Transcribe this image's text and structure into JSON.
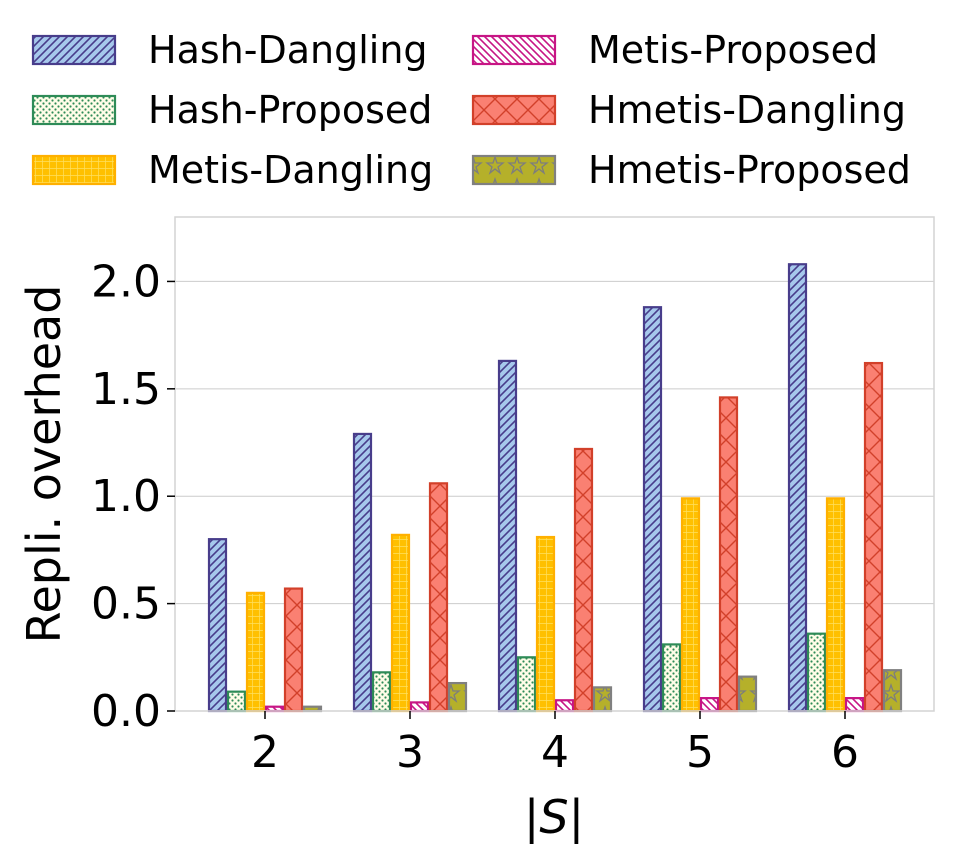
{
  "chart_data": {
    "type": "bar",
    "categories": [
      "2",
      "3",
      "4",
      "5",
      "6"
    ],
    "xlabel": "|S|",
    "ylabel": "Repli. overhead",
    "ylim": [
      0,
      2.3
    ],
    "yticks": [
      "0.0",
      "0.5",
      "1.0",
      "1.5",
      "2.0"
    ],
    "grid": "horizontal",
    "legend_position": "top",
    "series": [
      {
        "name": "Hash-Dangling",
        "values": [
          0.8,
          1.29,
          1.63,
          1.88,
          2.08
        ],
        "color": "#a6c8ec",
        "edge": "#483d8b",
        "hatch": "diagonal"
      },
      {
        "name": "Hash-Proposed",
        "values": [
          0.09,
          0.18,
          0.25,
          0.31,
          0.36
        ],
        "color": "#fffde8",
        "edge": "#2e8b57",
        "hatch": "dots"
      },
      {
        "name": "Metis-Dangling",
        "values": [
          0.55,
          0.82,
          0.81,
          0.99,
          0.99
        ],
        "color": "#ffc000",
        "edge": "#ffb000",
        "hatch": "grid"
      },
      {
        "name": "Metis-Proposed",
        "values": [
          0.02,
          0.04,
          0.05,
          0.06,
          0.06
        ],
        "color": "#ffffff",
        "edge": "#c71585",
        "hatch": "backdiagonal"
      },
      {
        "name": "Hmetis-Dangling",
        "values": [
          0.57,
          1.06,
          1.22,
          1.46,
          1.62
        ],
        "color": "#fa8072",
        "edge": "#d2402a",
        "hatch": "cross"
      },
      {
        "name": "Hmetis-Proposed",
        "values": [
          0.02,
          0.13,
          0.11,
          0.16,
          0.19
        ],
        "color": "#b5b02a",
        "edge": "#808080",
        "hatch": "stars"
      }
    ]
  }
}
